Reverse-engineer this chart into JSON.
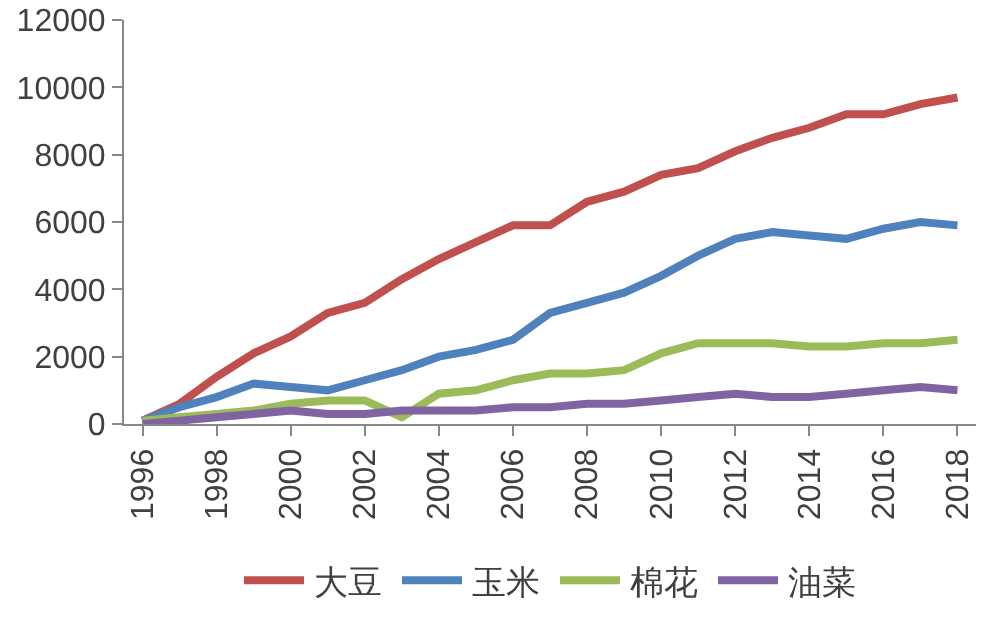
{
  "chart_data": {
    "type": "line",
    "x": [
      1996,
      1997,
      1998,
      1999,
      2000,
      2001,
      2002,
      2003,
      2004,
      2005,
      2006,
      2007,
      2008,
      2009,
      2010,
      2011,
      2012,
      2013,
      2014,
      2015,
      2016,
      2017,
      2018
    ],
    "series": [
      {
        "name": "大豆",
        "color": "#c0504d",
        "values": [
          100,
          600,
          1400,
          2100,
          2600,
          3300,
          3600,
          4300,
          4900,
          5400,
          5900,
          5900,
          6600,
          6900,
          7400,
          7600,
          8100,
          8500,
          8800,
          9200,
          9200,
          9500,
          9700
        ]
      },
      {
        "name": "玉米",
        "color": "#4f81bd",
        "values": [
          100,
          500,
          800,
          1200,
          1100,
          1000,
          1300,
          1600,
          2000,
          2200,
          2500,
          3300,
          3600,
          3900,
          4400,
          5000,
          5500,
          5700,
          5600,
          5500,
          5800,
          6000,
          5900
        ]
      },
      {
        "name": "棉花",
        "color": "#9bbb59",
        "values": [
          100,
          200,
          300,
          400,
          600,
          700,
          700,
          200,
          900,
          1000,
          1300,
          1500,
          1500,
          1600,
          2100,
          2400,
          2400,
          2400,
          2300,
          2300,
          2400,
          2400,
          2500
        ]
      },
      {
        "name": "油菜",
        "color": "#8064a2",
        "values": [
          0,
          100,
          200,
          300,
          400,
          300,
          300,
          400,
          400,
          400,
          500,
          500,
          600,
          600,
          700,
          800,
          900,
          800,
          800,
          900,
          1000,
          1100,
          1000
        ]
      }
    ],
    "xlim": [
      1995.5,
      2018.5
    ],
    "xticks": [
      1996,
      1998,
      2000,
      2002,
      2004,
      2006,
      2008,
      2010,
      2012,
      2014,
      2016,
      2018
    ],
    "ylim": [
      0,
      12000
    ],
    "yticks": [
      0,
      2000,
      4000,
      6000,
      8000,
      10000,
      12000
    ],
    "grid": false,
    "legend": "bottom",
    "marker": "none",
    "line_style": "solid"
  }
}
